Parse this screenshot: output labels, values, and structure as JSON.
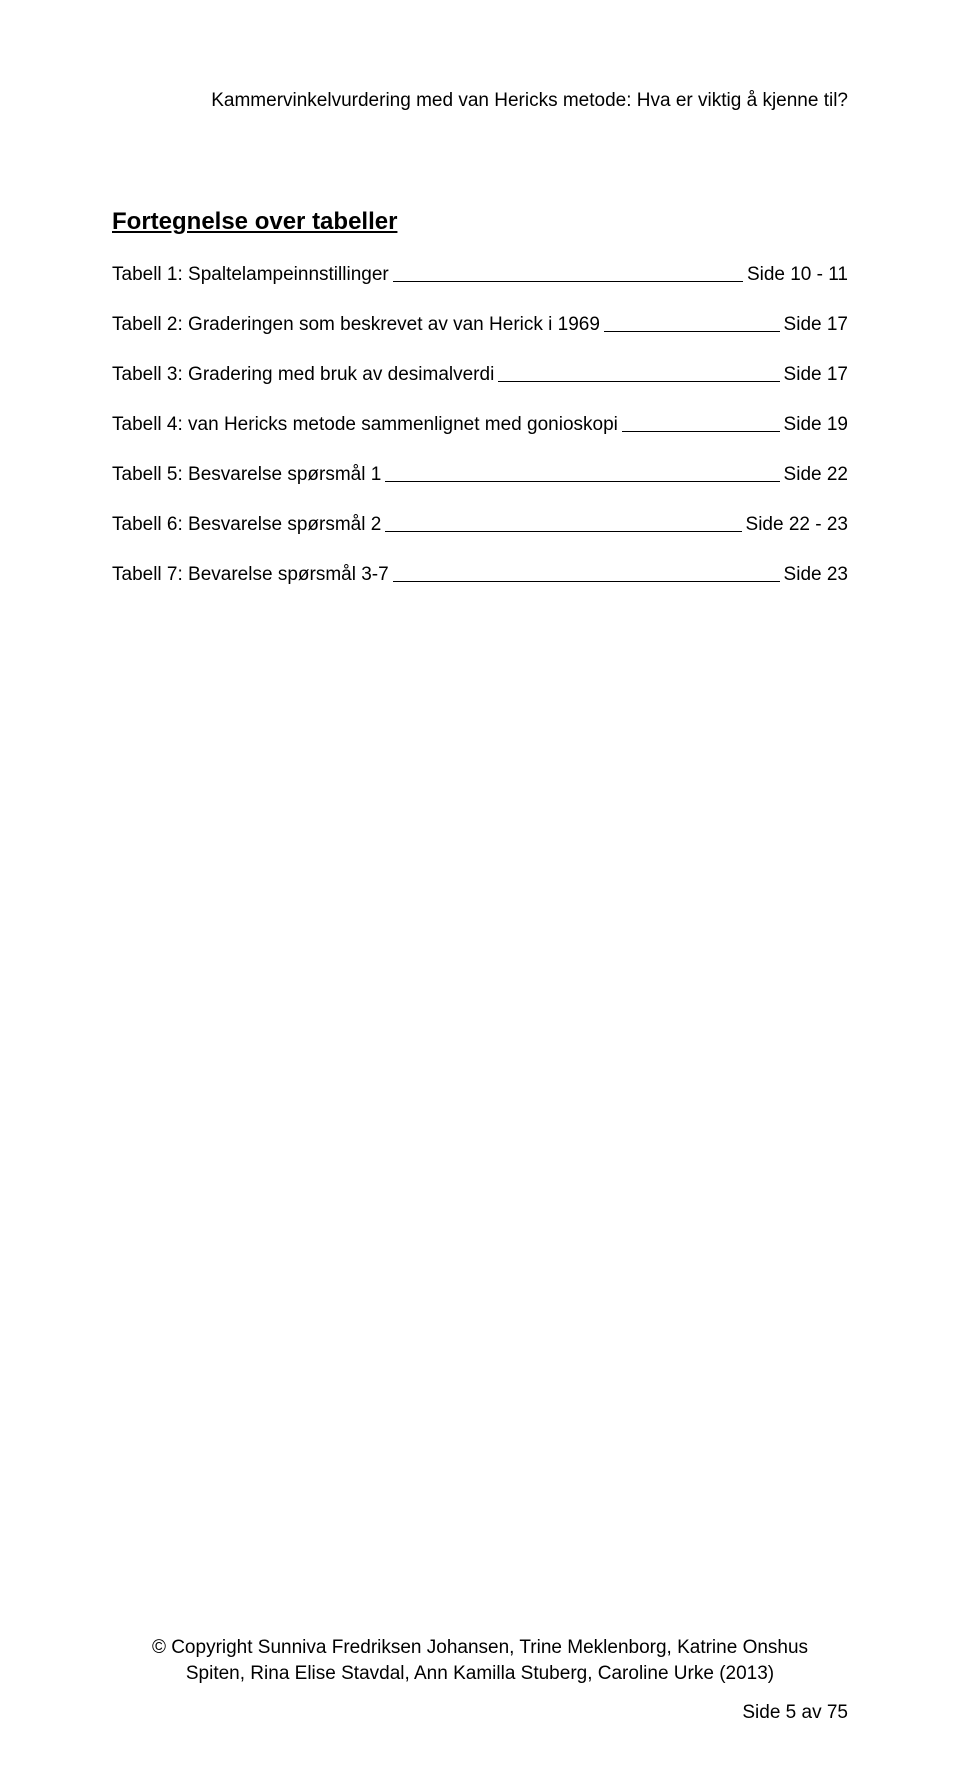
{
  "header": {
    "text": "Kammervinkelvurdering med van Hericks metode: Hva er viktig å kjenne til?"
  },
  "heading": "Fortegnelse over tabeller",
  "entries": [
    {
      "label": "Tabell 1: Spaltelampeinnstillinger",
      "page": "Side 10 - 11"
    },
    {
      "label": "Tabell 2: Graderingen som beskrevet av van Herick i 1969",
      "page": "Side 17"
    },
    {
      "label": "Tabell 3: Gradering med bruk av desimalverdi",
      "page": "Side 17"
    },
    {
      "label": "Tabell 4: van Hericks metode sammenlignet med gonioskopi",
      "page": "Side 19"
    },
    {
      "label": "Tabell 5: Besvarelse spørsmål 1",
      "page": "Side 22"
    },
    {
      "label": "Tabell 6: Besvarelse spørsmål 2",
      "page": "Side 22 - 23"
    },
    {
      "label": "Tabell 7: Bevarelse spørsmål 3-7",
      "page": "Side 23"
    }
  ],
  "footer": {
    "line1": "© Copyright Sunniva Fredriksen Johansen, Trine Meklenborg, Katrine Onshus",
    "line2": "Spiten, Rina Elise Stavdal, Ann Kamilla Stuberg, Caroline Urke (2013)",
    "pagenum": "Side 5 av 75"
  }
}
